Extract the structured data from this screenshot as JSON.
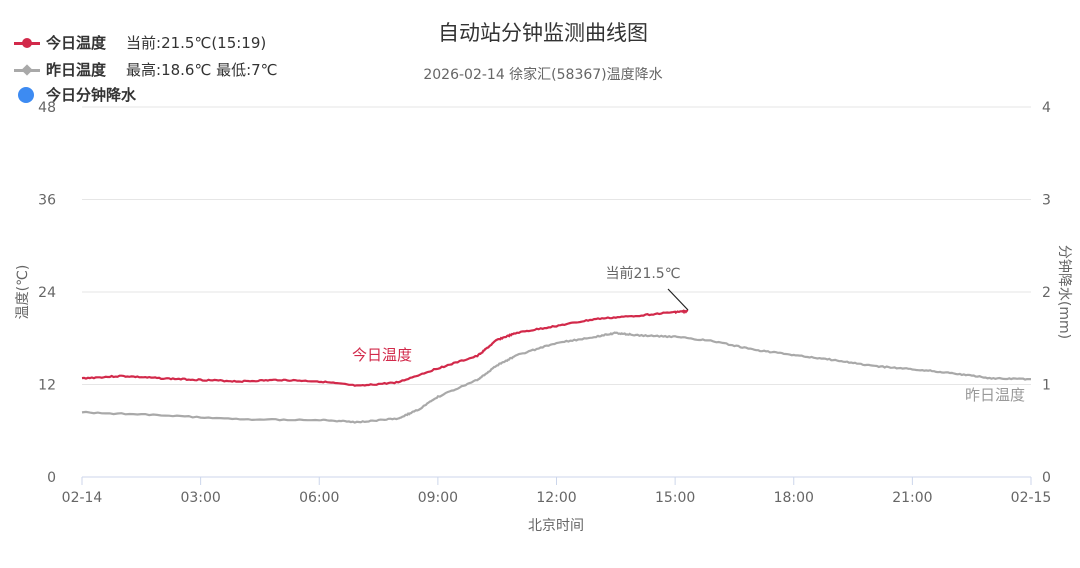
{
  "chart_data": {
    "type": "line",
    "title": "自动站分钟监测曲线图",
    "subtitle": "2026-02-14 徐家汇(58367)温度降水",
    "xlabel": "北京时间",
    "ylabel": "温度(℃)",
    "y2label": "分钟降水(mm)",
    "x_ticks": [
      "02-14",
      "03:00",
      "06:00",
      "09:00",
      "12:00",
      "15:00",
      "18:00",
      "21:00",
      "02-15"
    ],
    "ylim": [
      0,
      48
    ],
    "y_ticks": [
      "0",
      "12",
      "24",
      "36",
      "48"
    ],
    "y2lim": [
      0,
      4
    ],
    "y2_ticks": [
      "0",
      "1",
      "2",
      "3",
      "4"
    ],
    "grid": true,
    "legend": [
      {
        "name": "今日温度",
        "extra": "当前:21.5℃(15:19)",
        "color": "#d2294a"
      },
      {
        "name": "昨日温度",
        "extra": "最高:18.6℃ 最低:7℃",
        "color": "#a9a9a9"
      },
      {
        "name": "今日分钟降水",
        "extra": "",
        "color": "#3d8bf2"
      }
    ],
    "legend_position": "top-left",
    "annotation": "当前21.5℃",
    "series": [
      {
        "name": "今日温度",
        "color": "#d2294a",
        "x": [
          0,
          1,
          2,
          3,
          4,
          5,
          6,
          7,
          8,
          9,
          10,
          10.5,
          11,
          12,
          13,
          14,
          15,
          15.32
        ],
        "y": [
          12.8,
          13.1,
          12.8,
          12.6,
          12.4,
          12.6,
          12.4,
          11.8,
          12.3,
          14.1,
          15.7,
          17.8,
          18.7,
          19.6,
          20.5,
          20.9,
          21.4,
          21.5
        ]
      },
      {
        "name": "昨日温度",
        "color": "#a9a9a9",
        "x": [
          0,
          2,
          4,
          6,
          7,
          8,
          8.5,
          9,
          10,
          10.5,
          11,
          12,
          13,
          13.5,
          14,
          15,
          16,
          17,
          18,
          19,
          20,
          21,
          22,
          23,
          24
        ],
        "y": [
          8.4,
          8.0,
          7.5,
          7.4,
          7.1,
          7.6,
          8.7,
          10.4,
          12.6,
          14.5,
          15.8,
          17.4,
          18.2,
          18.7,
          18.4,
          18.2,
          17.6,
          16.5,
          15.8,
          15.2,
          14.4,
          14.0,
          13.5,
          12.8,
          12.7
        ]
      },
      {
        "name": "今日分钟降水",
        "color": "#3d8bf2",
        "x": [],
        "y": []
      }
    ]
  }
}
